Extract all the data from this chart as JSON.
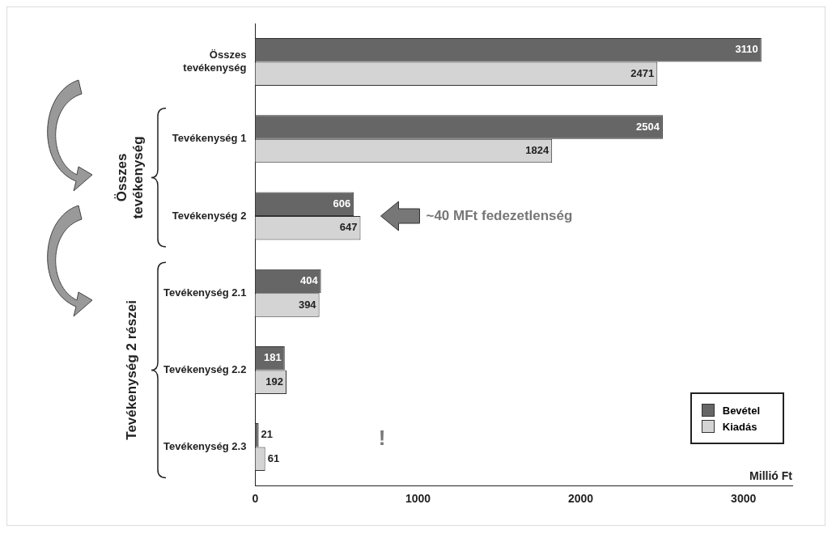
{
  "chart_data": {
    "type": "bar",
    "orientation": "horizontal",
    "xlabel": "Millió Ft",
    "categories": [
      "Összes tevékenység",
      "Tevékenység 1",
      "Tevékenység 2",
      "Tevékenység 2.1",
      "Tevékenység 2.2",
      "Tevékenység 2.3"
    ],
    "series": [
      {
        "name": "Bevétel",
        "color": "#666666",
        "values": [
          3110,
          2504,
          606,
          404,
          181,
          21
        ]
      },
      {
        "name": "Kiadás",
        "color": "#d4d4d4",
        "values": [
          2471,
          1824,
          647,
          394,
          192,
          61
        ]
      }
    ],
    "xlim": [
      0,
      3300
    ],
    "xticks": [
      0,
      1000,
      2000,
      3000
    ],
    "data_labels": true,
    "legend": "bottom right",
    "grid": false,
    "annotations": [
      "~40 MFt fedezetlenség",
      "!",
      "Összes tevékenység",
      "Tevékenység 2 részei"
    ]
  }
}
